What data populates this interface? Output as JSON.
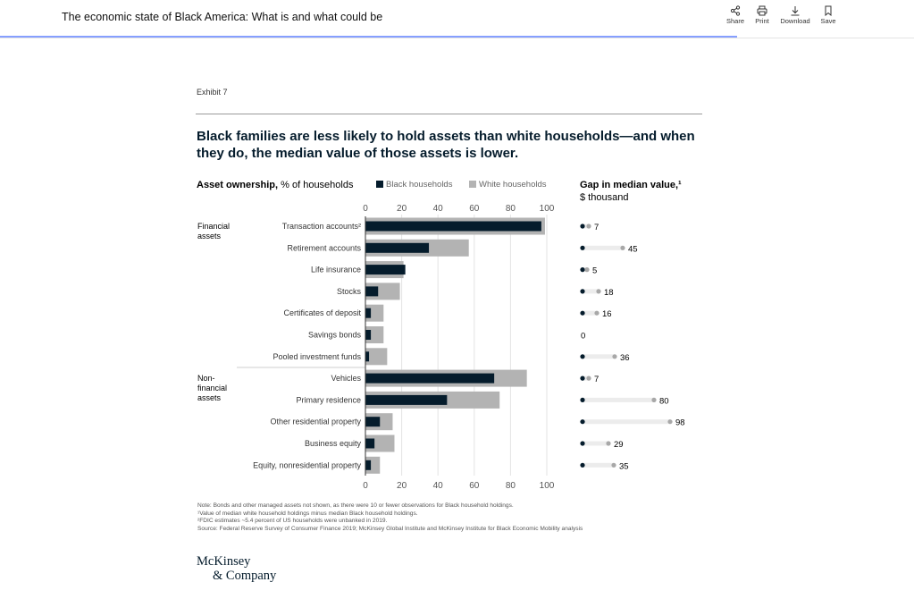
{
  "header": {
    "title": "The economic state of Black America: What is and what could be",
    "tools": [
      {
        "label": "Share",
        "icon": "share-icon"
      },
      {
        "label": "Print",
        "icon": "print-icon"
      },
      {
        "label": "Download",
        "icon": "download-icon"
      },
      {
        "label": "Save",
        "icon": "bookmark-icon"
      }
    ]
  },
  "exhibit": "Exhibit 7",
  "headline": "Black families are less likely to hold assets than white households—and when they do, the median value of those assets is lower.",
  "colors": {
    "black": "#051c2c",
    "white": "#b3b3b3",
    "track": "#ececec",
    "gapDot": "#a8a8a8"
  },
  "chart_data": [
    {
      "type": "bar",
      "orientation": "horizontal",
      "title": "Asset ownership,",
      "title_unit": "% of households",
      "xlim": [
        0,
        100
      ],
      "ticks": [
        "0",
        "20",
        "40",
        "60",
        "80",
        "100"
      ],
      "legend": [
        "Black households",
        "White households"
      ],
      "groups": [
        {
          "label": "Financial assets",
          "lines": [
            "Financial",
            "assets"
          ],
          "start": 0
        },
        {
          "label": "Non-financial assets",
          "lines": [
            "Non-",
            "financial",
            "assets"
          ],
          "start": 7
        }
      ],
      "categories": [
        "Transaction accounts²",
        "Retirement accounts",
        "Life insurance",
        "Stocks",
        "Certificates of deposit",
        "Savings bonds",
        "Pooled investment funds",
        "Vehicles",
        "Primary residence",
        "Other residential property",
        "Business equity",
        "Equity, nonresidential property"
      ],
      "series": [
        {
          "name": "Black households",
          "values": [
            97,
            35,
            22,
            7,
            3,
            3,
            2,
            71,
            45,
            8,
            5,
            3
          ]
        },
        {
          "name": "White households",
          "values": [
            99,
            57,
            21,
            19,
            10,
            10,
            12,
            89,
            74,
            15,
            16,
            8
          ]
        }
      ]
    },
    {
      "type": "dot",
      "title": "Gap in median value,¹",
      "subtitle": "$ thousand",
      "xlim": [
        0,
        110
      ],
      "categories": [
        "Transaction accounts²",
        "Retirement accounts",
        "Life insurance",
        "Stocks",
        "Certificates of deposit",
        "Savings bonds",
        "Pooled investment funds",
        "Vehicles",
        "Primary residence",
        "Other residential property",
        "Business equity",
        "Equity, nonresidential property"
      ],
      "values": [
        7,
        45,
        5,
        18,
        16,
        0,
        36,
        7,
        80,
        98,
        29,
        35
      ]
    }
  ],
  "notes": [
    "Note: Bonds and other managed assets not shown, as there were 10 or fewer observations for Black household holdings.",
    "¹Value of median white household holdings minus median Black household holdings.",
    "²FDIC estimates ~5.4 percent of US households were unbanked in 2019.",
    "Source: Federal Reserve Survey of Consumer Finance 2019; McKinsey Global Institute and McKinsey Institute for Black Economic Mobility analysis"
  ],
  "logo": {
    "line1": "McKinsey",
    "line2": "& Company"
  }
}
